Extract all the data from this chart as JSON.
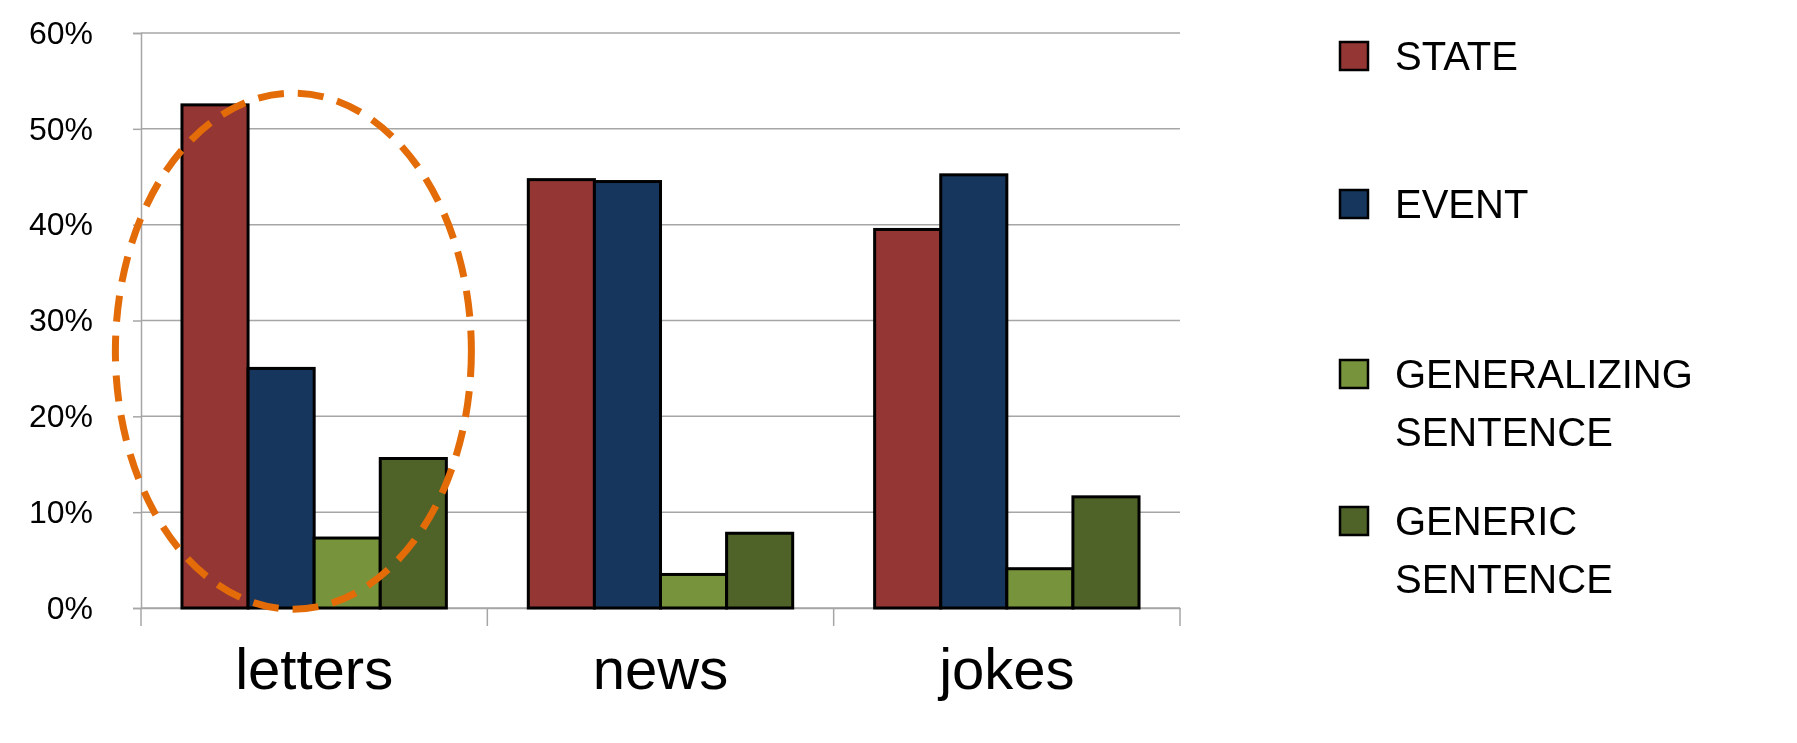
{
  "chart_data": {
    "type": "bar",
    "categories": [
      "letters",
      "news",
      "jokes"
    ],
    "series": [
      {
        "name": "STATE",
        "color": "#943634",
        "values": [
          52.5,
          44.7,
          39.5
        ]
      },
      {
        "name": "EVENT",
        "color": "#17365d",
        "values": [
          25,
          44.5,
          45.2
        ]
      },
      {
        "name": "GENERALIZING SENTENCE",
        "color": "#77933c",
        "values": [
          7.3,
          3.5,
          4.1
        ]
      },
      {
        "name": "GENERIC SENTENCE",
        "color": "#4f6228",
        "values": [
          15.6,
          7.8,
          11.6
        ]
      }
    ],
    "ylim": [
      0,
      60
    ],
    "yticks": [
      {
        "value": 0,
        "label": "0%"
      },
      {
        "value": 10,
        "label": "10%"
      },
      {
        "value": 20,
        "label": "20%"
      },
      {
        "value": 30,
        "label": "30%"
      },
      {
        "value": 40,
        "label": "40%"
      },
      {
        "value": 50,
        "label": "50%"
      },
      {
        "value": 60,
        "label": "60%"
      }
    ],
    "grid": "y",
    "legend": "right"
  }
}
